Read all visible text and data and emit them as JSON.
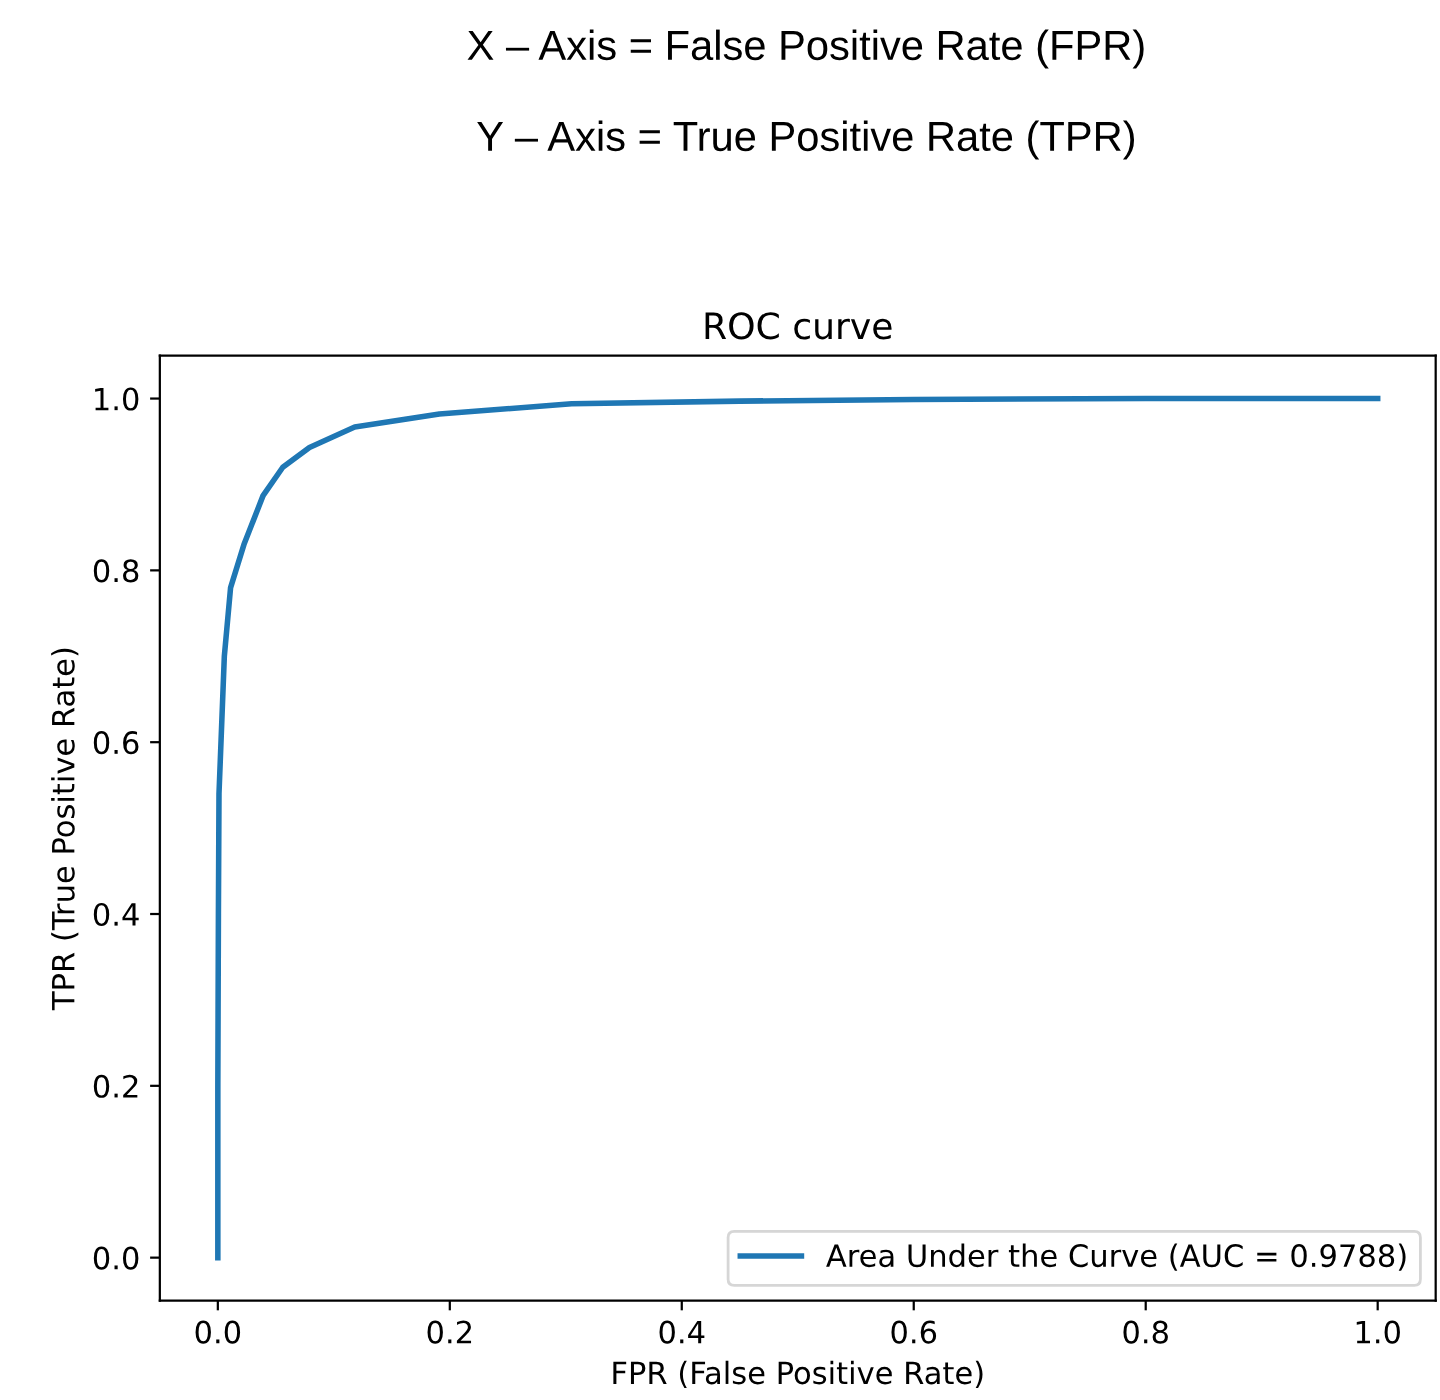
{
  "chart_data": {
    "type": "line",
    "title": "ROC curve",
    "xlabel": "FPR (False Positive Rate)",
    "ylabel": "TPR (True Positive Rate)",
    "annotations": [
      "X – Axis = False Positive Rate (FPR)",
      "Y – Axis = True Positive Rate (TPR)"
    ],
    "series": [
      {
        "name": "Area Under the Curve (AUC = 0.9788)",
        "color": "#1f77b4",
        "x": [
          0,
          0,
          0.0005,
          0.001,
          0.0056,
          0.011,
          0.0225,
          0.039,
          0.056,
          0.079,
          0.118,
          0.191,
          0.305,
          0.45,
          0.6,
          0.8,
          1.0
        ],
        "values": [
          0,
          0.2,
          0.4,
          0.54,
          0.7,
          0.78,
          0.83,
          0.887,
          0.92,
          0.943,
          0.967,
          0.982,
          0.994,
          0.997,
          0.999,
          1.0,
          1.0
        ]
      }
    ],
    "xlim": [
      -0.05,
      1.05
    ],
    "ylim": [
      -0.05,
      1.05
    ],
    "xticks": [
      {
        "value": 0,
        "label": "0.0"
      },
      0.2,
      0.4,
      0.6,
      0.8,
      {
        "value": 1,
        "label": "1.0"
      }
    ],
    "yticks": [
      {
        "value": 0,
        "label": "0.0"
      },
      0.2,
      0.4,
      0.6,
      0.8,
      {
        "value": 1,
        "label": "1.0"
      }
    ],
    "grid": false,
    "legend": "lower right",
    "marker": "none",
    "line_style": "solid"
  }
}
